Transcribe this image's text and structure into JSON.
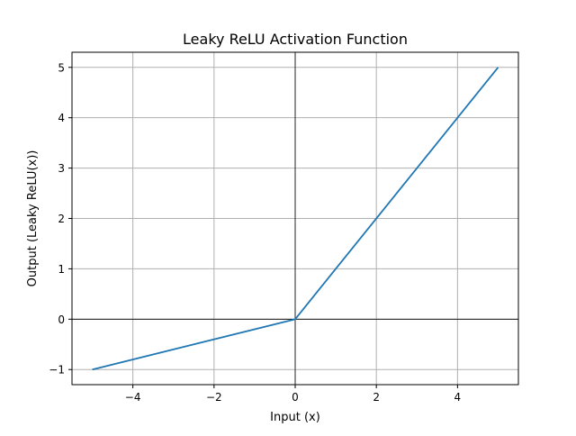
{
  "chart_data": {
    "type": "line",
    "title": "Leaky ReLU Activation Function",
    "xlabel": "Input (x)",
    "ylabel": "Output (Leaky ReLU(x))",
    "xlim": [
      -5.5,
      5.5
    ],
    "ylim": [
      -1.3,
      5.3
    ],
    "xticks": [
      -4,
      -2,
      0,
      2,
      4
    ],
    "xtick_labels": [
      "−4",
      "−2",
      "0",
      "2",
      "4"
    ],
    "yticks": [
      -1,
      0,
      1,
      2,
      3,
      4,
      5
    ],
    "ytick_labels": [
      "−1",
      "0",
      "1",
      "2",
      "3",
      "4",
      "5"
    ],
    "grid": true,
    "reference_lines": {
      "x": 0,
      "y": 0
    },
    "series": [
      {
        "color": "#1f77b4",
        "x": [
          -5,
          0,
          5
        ],
        "y": [
          -1,
          0,
          5
        ]
      }
    ]
  }
}
